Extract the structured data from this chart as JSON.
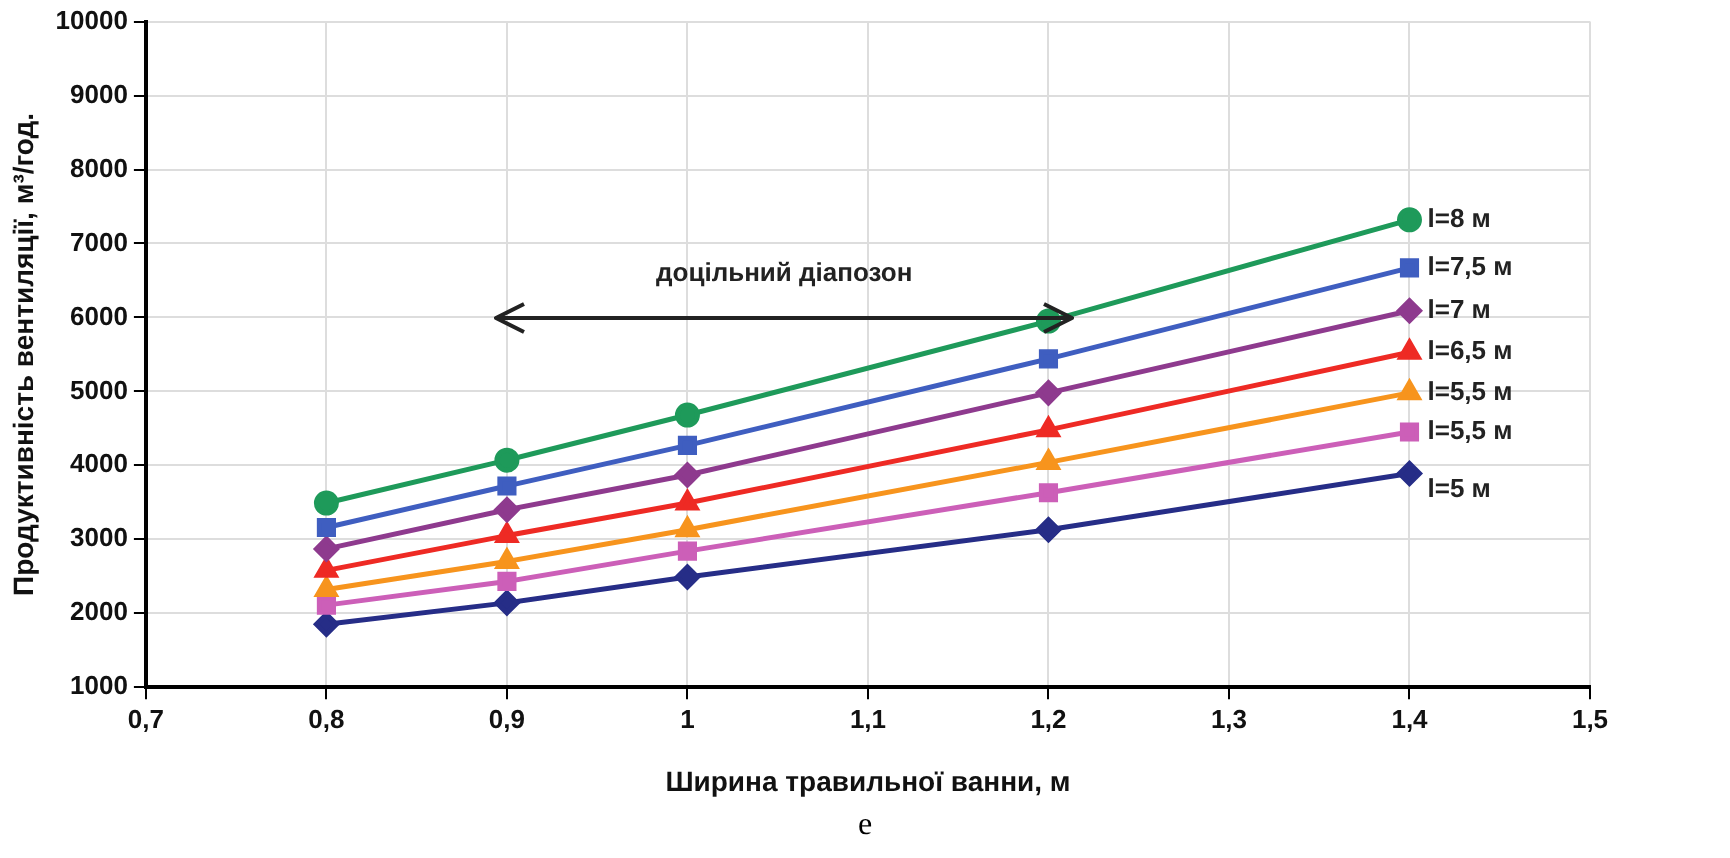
{
  "chart_data": {
    "type": "line",
    "xlabel": "Ширина травильної ванни, м",
    "ylabel": "Продуктивність вентиляції, м³/год.",
    "x": [
      0.8,
      0.9,
      1,
      1.2,
      1.4
    ],
    "series": [
      {
        "name": "l=8 м",
        "color": "#1e9a5a",
        "values": [
          3490,
          4070,
          4680,
          5950,
          7320
        ],
        "marker": "circle"
      },
      {
        "name": "l=7,5 м",
        "color": "#3f5ec0",
        "values": [
          3160,
          3720,
          4270,
          5440,
          6670
        ],
        "marker": "square"
      },
      {
        "name": "l=7 м",
        "color": "#8e3a8e",
        "values": [
          2870,
          3400,
          3870,
          4980,
          6090
        ],
        "marker": "diamond"
      },
      {
        "name": "l=6,5 м",
        "color": "#ee2a24",
        "values": [
          2580,
          3050,
          3490,
          4480,
          5530
        ],
        "marker": "triangle"
      },
      {
        "name": "l=5,5 м",
        "color": "#f7941d",
        "values": [
          2320,
          2700,
          3130,
          4040,
          4980
        ],
        "marker": "triangle"
      },
      {
        "name": "l=5,5 м",
        "color": "#cc5fb8",
        "values": [
          2110,
          2430,
          2840,
          3630,
          4450
        ],
        "marker": "square"
      },
      {
        "name": "l=5 м",
        "color": "#262d87",
        "values": [
          1850,
          2140,
          2490,
          3130,
          3890
        ],
        "marker": "diamond"
      }
    ],
    "xlim": [
      0.7,
      1.5
    ],
    "xticks": [
      {
        "value": 0.7,
        "label": "0,7"
      },
      {
        "value": 0.8,
        "label": "0,8"
      },
      {
        "value": 0.9,
        "label": "0,9"
      },
      {
        "value": 1,
        "label": "1"
      },
      {
        "value": 1.1,
        "label": "1,1"
      },
      {
        "value": 1.2,
        "label": "1,2"
      },
      {
        "value": 1.3,
        "label": "1,3"
      },
      {
        "value": 1.4,
        "label": "1,4"
      },
      {
        "value": 1.5,
        "label": "1,5"
      }
    ],
    "ylim": [
      1000,
      10000
    ],
    "yticks": [
      1000,
      2000,
      3000,
      4000,
      5000,
      6000,
      7000,
      8000,
      9000,
      10000
    ],
    "grid": true,
    "legend": false,
    "annotations": [
      "доцільний діапозон",
      "е"
    ]
  }
}
